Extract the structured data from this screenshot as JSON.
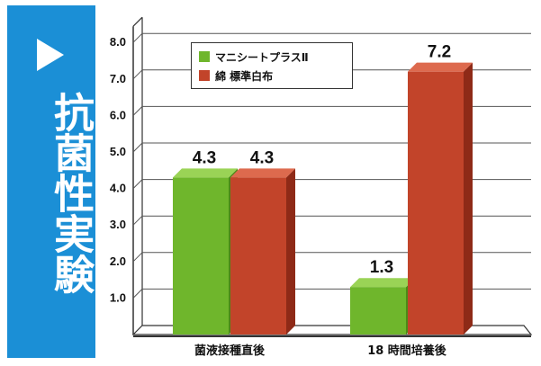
{
  "banner": {
    "title": "抗菌性実験",
    "color": "#1b8fd6",
    "icon": "play-triangle-icon"
  },
  "chart_data": {
    "type": "bar",
    "categories": [
      "菌液接種直後",
      "18 時間培養後"
    ],
    "series": [
      {
        "name": "マニシートプラスⅡ",
        "values": [
          4.3,
          1.3
        ],
        "color": "#6fb62c"
      },
      {
        "name": "綿 標準白布",
        "values": [
          4.3,
          7.2
        ],
        "color": "#c2442a"
      }
    ],
    "data_labels": [
      "4.3",
      "1.3",
      "4.3",
      "7.2"
    ],
    "y_ticks": [
      "1.0",
      "2.0",
      "3.0",
      "4.0",
      "5.0",
      "6.0",
      "7.0",
      "8.0"
    ],
    "ylim": [
      0,
      8.0
    ],
    "grid": true,
    "legend": "top-left",
    "style": "3d"
  }
}
